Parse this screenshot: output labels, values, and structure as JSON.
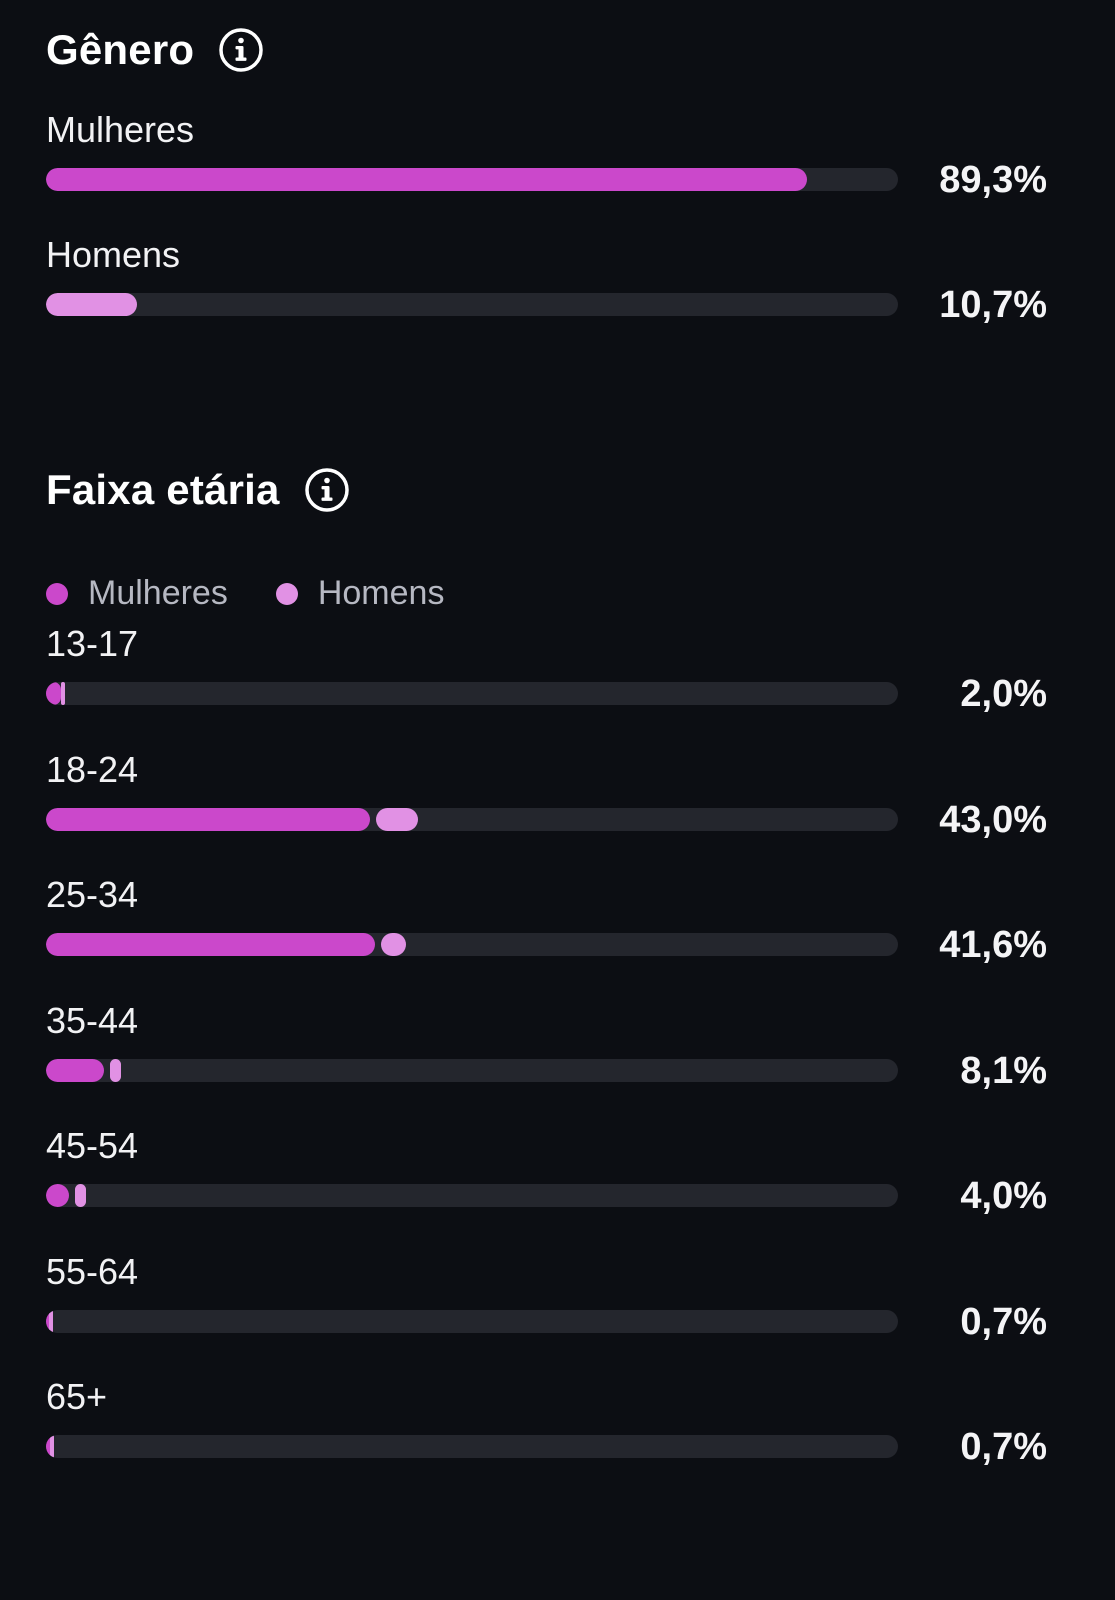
{
  "colors": {
    "women": "#cb48cb",
    "men": "#e191e4",
    "track": "#24262d"
  },
  "gender": {
    "title": "Gênero",
    "icon": "info-icon",
    "rows": [
      {
        "label": "Mulheres",
        "value": 89.3,
        "value_label": "89,3%",
        "series": "women"
      },
      {
        "label": "Homens",
        "value": 10.7,
        "value_label": "10,7%",
        "series": "men"
      }
    ]
  },
  "age": {
    "title": "Faixa etária",
    "icon": "info-icon",
    "legend": [
      {
        "label": "Mulheres",
        "series": "women"
      },
      {
        "label": "Homens",
        "series": "men"
      }
    ],
    "rows": [
      {
        "label": "13-17",
        "women": 1.8,
        "men": 0.2,
        "value_label": "2,0%"
      },
      {
        "label": "18-24",
        "women": 38.0,
        "men": 5.0,
        "value_label": "43,0%"
      },
      {
        "label": "25-34",
        "women": 38.6,
        "men": 3.0,
        "value_label": "41,6%"
      },
      {
        "label": "35-44",
        "women": 6.8,
        "men": 1.3,
        "value_label": "8,1%"
      },
      {
        "label": "45-54",
        "women": 2.7,
        "men": 1.3,
        "value_label": "4,0%"
      },
      {
        "label": "55-64",
        "women": 0.3,
        "men": 0.4,
        "value_label": "0,7%"
      },
      {
        "label": "65+",
        "women": 0.5,
        "men": 0.2,
        "value_label": "0,7%"
      }
    ]
  },
  "chart_data": [
    {
      "type": "bar",
      "title": "Gênero",
      "categories": [
        "Mulheres",
        "Homens"
      ],
      "values": [
        89.3,
        10.7
      ],
      "ylim": [
        0,
        100
      ]
    },
    {
      "type": "bar",
      "title": "Faixa etária",
      "categories": [
        "13-17",
        "18-24",
        "25-34",
        "35-44",
        "45-54",
        "55-64",
        "65+"
      ],
      "series": [
        {
          "name": "Mulheres",
          "values": [
            1.8,
            38.0,
            38.6,
            6.8,
            2.7,
            0.3,
            0.5
          ]
        },
        {
          "name": "Homens",
          "values": [
            0.2,
            5.0,
            3.0,
            1.3,
            1.3,
            0.4,
            0.2
          ]
        }
      ],
      "totals": [
        2.0,
        43.0,
        41.6,
        8.1,
        4.0,
        0.7,
        0.7
      ],
      "legend": "top-left",
      "ylim": [
        0,
        100
      ]
    }
  ]
}
